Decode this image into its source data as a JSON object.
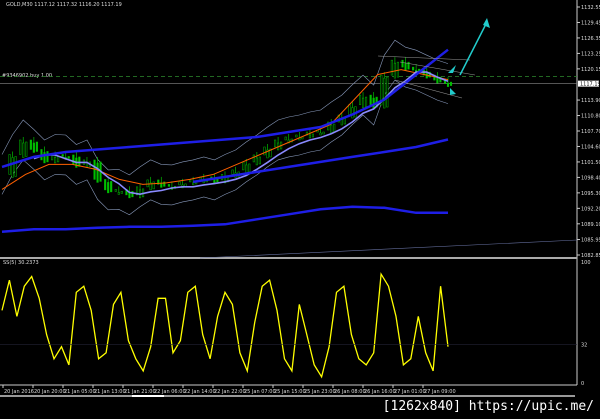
{
  "header": {
    "symbol_info": "GOLD,M30  1117.12 1117.32 1116.20 1117.19"
  },
  "order_label": "#9346902 buy 1.00",
  "oscillator": {
    "label": "SS(5) 30.2373",
    "levels": [
      "100",
      "32",
      "0"
    ]
  },
  "watermark": "[1262x840] https://upic.me/",
  "colors": {
    "bull": "#00c000",
    "ma_thick": "#1e1ee6",
    "ma_fast": "#ff6000",
    "ma_mid": "#8a8aff",
    "bands": "#8899bb",
    "oscillator": "#ffff00",
    "arrow": "#22cccc",
    "order_line": "#2e8b2e"
  },
  "chart_data": [
    {
      "type": "line",
      "title": "",
      "price_ticks": [
        "1132.55",
        "1129.45",
        "1126.35",
        "1123.25",
        "1120.15",
        "1113.90",
        "1110.80",
        "1107.70",
        "1104.60",
        "1101.50",
        "1098.40",
        "1095.30",
        "1092.20",
        "1089.10",
        "1085.95",
        "1082.85"
      ],
      "current_price": "1117.19",
      "ylim": [
        1082.85,
        1132.55
      ],
      "x_tick_labels": [
        "20 Jan 2016",
        "20 Jan 20:00",
        "21 Jan 05:00",
        "21 Jan 13:00",
        "21 Jan 21:00",
        "22 Jan 06:00",
        "22 Jan 14:00",
        "22 Jan 22:00",
        "25 Jan 07:00",
        "25 Jan 15:00",
        "25 Jan 23:00",
        "26 Jan 08:00",
        "26 Jan 16:00",
        "27 Jan 01:00",
        "27 Jan 09:00"
      ],
      "series": [
        {
          "role": "close",
          "values": [
            1099,
            1103,
            1105.9,
            1104,
            1101.9,
            1103,
            1102.9,
            1101,
            1101.9,
            1098,
            1095.9,
            1096,
            1094.9,
            1096.5,
            1097.9,
            1097,
            1096.9,
            1097.5,
            1097.9,
            1098.5,
            1097.9,
            1099,
            1099.9,
            1101.5,
            1102.9,
            1104.5,
            1105.9,
            1106.5,
            1106.9,
            1107.5,
            1107.9,
            1109.5,
            1110.9,
            1113,
            1114.9,
            1112.9,
            1118.9,
            1121.9,
            1120.5,
            1119.9,
            1118.9,
            1117.9,
            1117.2
          ]
        },
        {
          "role": "ma_upper_thick",
          "values": [
            1100.5,
            1102.5,
            1103.5,
            1104,
            1104.5,
            1105,
            1105.5,
            1106,
            1106.5,
            1107.5,
            1108.5,
            1111,
            1114,
            1119,
            1124
          ]
        },
        {
          "role": "ma_mid_thick",
          "values": [
            null,
            null,
            null,
            null,
            null,
            null,
            1097.5,
            1098.5,
            1099.5,
            1100.5,
            1101.5,
            1102.5,
            1103.5,
            1104.5,
            1106
          ]
        },
        {
          "role": "ma_slow_thick",
          "values": [
            1087.5,
            1088,
            1088,
            1088.3,
            1088.5,
            1088.5,
            1088.7,
            1089,
            1090,
            1091,
            1092,
            1092.5,
            1092.3,
            1091.3,
            1091.3
          ]
        },
        {
          "role": "ma_fast",
          "values": [
            1096,
            1099,
            1101,
            1101,
            1100,
            1098,
            1097,
            1097.3,
            1098,
            1099,
            1101,
            1103,
            1105,
            1107,
            1109,
            1114,
            1119,
            1120,
            1119,
            1118
          ]
        }
      ]
    },
    {
      "type": "line",
      "title": "SS(5) 30.2373",
      "ylim": [
        0,
        100
      ],
      "values": [
        60,
        85,
        55,
        80,
        88,
        70,
        40,
        20,
        30,
        15,
        75,
        80,
        60,
        20,
        25,
        65,
        75,
        35,
        20,
        10,
        30,
        70,
        70,
        25,
        35,
        75,
        80,
        40,
        20,
        55,
        75,
        65,
        25,
        10,
        50,
        80,
        85,
        60,
        20,
        10,
        65,
        40,
        15,
        5,
        30,
        75,
        80,
        40,
        20,
        15,
        25,
        90,
        80,
        55,
        15,
        20,
        55,
        25,
        10,
        80,
        30
      ]
    }
  ]
}
